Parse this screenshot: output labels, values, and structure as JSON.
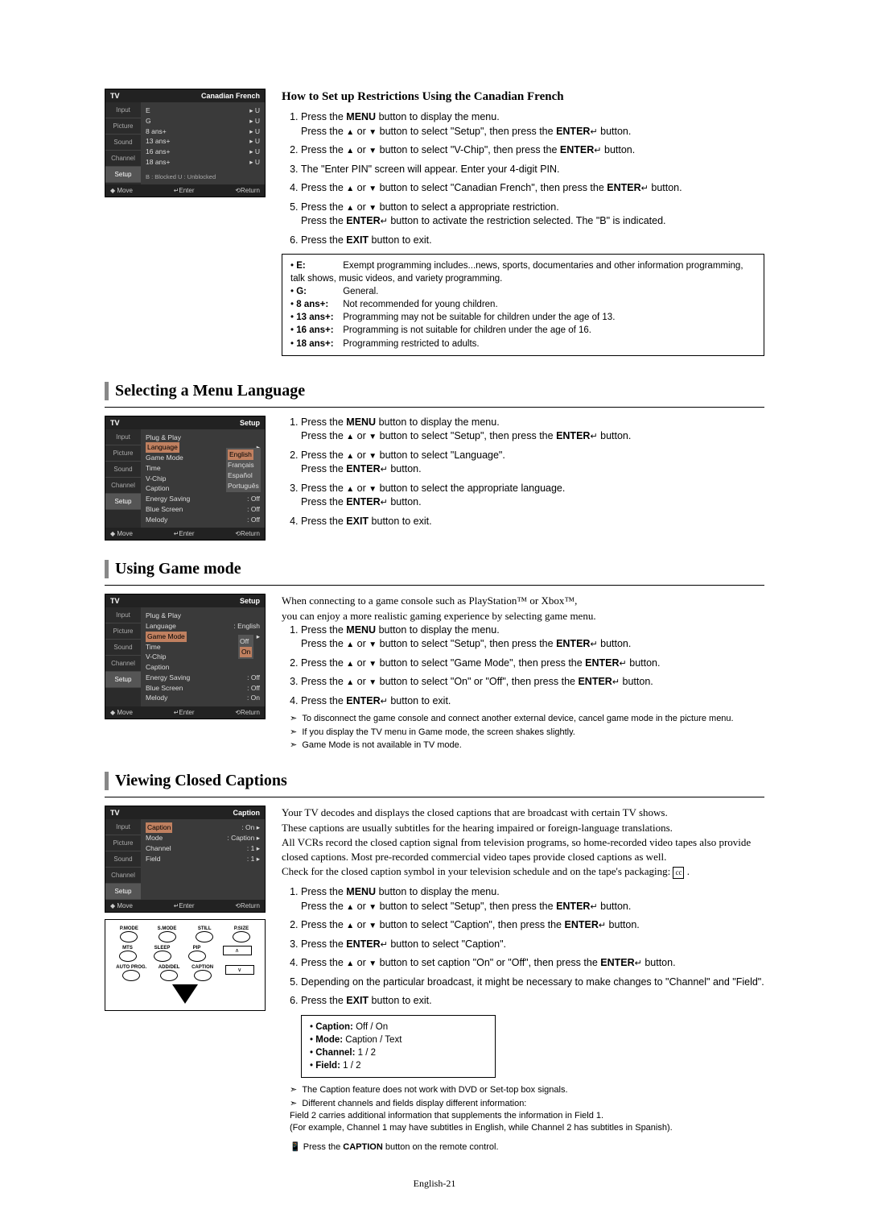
{
  "page_number": "English-21",
  "section1": {
    "subtitle": "How to Set up Restrictions Using the Canadian French",
    "steps": [
      "Press the <b>MENU</b> button to display the menu.<br>Press the <span class='caret'>▲</span> or <span class='caret'>▼</span> button to select \"Setup\", then press the <b>ENTER</b><span class='icon-enter'>↵</span> button.",
      "Press the <span class='caret'>▲</span> or <span class='caret'>▼</span> button to select \"V-Chip\", then press the <b>ENTER</b><span class='icon-enter'>↵</span> button.",
      "The \"Enter PIN\" screen will appear. Enter your 4-digit PIN.",
      "Press the <span class='caret'>▲</span> or <span class='caret'>▼</span> button to select \"Canadian French\", then press the <b>ENTER</b><span class='icon-enter'>↵</span> button.",
      "Press the <span class='caret'>▲</span> or <span class='caret'>▼</span> button to select a appropriate restriction.<br>Press the <b>ENTER</b><span class='icon-enter'>↵</span> button to activate the restriction selected. The \"B\" is indicated.",
      "Press the <b>EXIT</b> button to exit."
    ],
    "ratings": [
      {
        "k": "E:",
        "v": "Exempt programming includes...news, sports, documentaries and other information programming, talk shows, music videos, and variety programming."
      },
      {
        "k": "G:",
        "v": "General."
      },
      {
        "k": "8 ans+:",
        "v": "Not recommended for young children."
      },
      {
        "k": "13 ans+:",
        "v": "Programming may not be suitable for children under the age of 13."
      },
      {
        "k": "16 ans+:",
        "v": "Programming is not suitable for children under the age of 16."
      },
      {
        "k": "18 ans+:",
        "v": "Programming restricted to adults."
      }
    ],
    "menu": {
      "title": "TV",
      "sub": "Canadian French",
      "tabs": [
        "Input",
        "Picture",
        "Sound",
        "Channel",
        "Setup"
      ],
      "rows": [
        [
          "E",
          "▸ U"
        ],
        [
          "G",
          "▸ U"
        ],
        [
          "8 ans+",
          "▸ U"
        ],
        [
          "13 ans+",
          "▸ U"
        ],
        [
          "16 ans+",
          "▸ U"
        ],
        [
          "18 ans+",
          "▸ U"
        ]
      ],
      "legend": "B : Blocked        U : Unblocked",
      "footer": [
        "◆ Move",
        "↵Enter",
        "⟲Return"
      ]
    }
  },
  "section2": {
    "title": "Selecting a Menu Language",
    "steps": [
      "Press the <b>MENU</b> button to display the menu.<br>Press the <span class='caret'>▲</span> or <span class='caret'>▼</span> button to select \"Setup\", then press the <b>ENTER</b><span class='icon-enter'>↵</span> button.",
      "Press the <span class='caret'>▲</span> or <span class='caret'>▼</span> button to select \"Language\".<br>Press the <b>ENTER</b><span class='icon-enter'>↵</span> button.",
      "Press the <span class='caret'>▲</span> or <span class='caret'>▼</span> button to select the appropriate language.<br>Press the <b>ENTER</b><span class='icon-enter'>↵</span> button.",
      "Press the <b>EXIT</b> button to exit."
    ],
    "menu": {
      "title": "TV",
      "sub": "Setup",
      "tabs": [
        "Input",
        "Picture",
        "Sound",
        "Channel",
        "Setup"
      ],
      "items": [
        [
          "Plug & Play",
          ""
        ],
        [
          "Language",
          "▸"
        ],
        [
          "Game Mode",
          ""
        ],
        [
          "Time",
          ""
        ],
        [
          "V-Chip",
          ""
        ],
        [
          "Caption",
          ""
        ],
        [
          "Energy Saving",
          ": Off"
        ],
        [
          "Blue Screen",
          ": Off"
        ],
        [
          "Melody",
          ": Off"
        ]
      ],
      "langs": [
        "English",
        "Français",
        "Español",
        "Português"
      ],
      "footer": [
        "◆ Move",
        "↵Enter",
        "⟲Return"
      ]
    }
  },
  "section3": {
    "title": "Using Game mode",
    "intro": "When connecting to a game console such as PlayStation™ or Xbox™,<br>you can enjoy a more realistic gaming experience by selecting game menu.",
    "steps": [
      "Press the <b>MENU</b> button to display the menu.<br>Press the <span class='caret'>▲</span> or <span class='caret'>▼</span> button to select \"Setup\", then press the <b>ENTER</b><span class='icon-enter'>↵</span> button.",
      "Press the <span class='caret'>▲</span> or <span class='caret'>▼</span> button to select \"Game Mode\", then press the <b>ENTER</b><span class='icon-enter'>↵</span> button.",
      "Press the <span class='caret'>▲</span> or <span class='caret'>▼</span> button to select \"On\" or \"Off\", then press the <b>ENTER</b><span class='icon-enter'>↵</span> button.",
      "Press the <b>ENTER</b><span class='icon-enter'>↵</span> button to exit."
    ],
    "notes": [
      "To disconnect the game console and connect another external device, cancel game mode in the picture menu.",
      "If you display the TV menu in Game mode, the screen shakes slightly.",
      "Game Mode is not available in TV mode."
    ],
    "menu": {
      "title": "TV",
      "sub": "Setup",
      "tabs": [
        "Input",
        "Picture",
        "Sound",
        "Channel",
        "Setup"
      ],
      "items": [
        [
          "Plug & Play",
          ""
        ],
        [
          "Language",
          ": English"
        ],
        [
          "Game Mode",
          "▸"
        ],
        [
          "Time",
          ""
        ],
        [
          "V-Chip",
          ""
        ],
        [
          "Caption",
          ""
        ],
        [
          "Energy Saving",
          ": Off"
        ],
        [
          "Blue Screen",
          ": Off"
        ],
        [
          "Melody",
          ": On"
        ]
      ],
      "opts": [
        "Off",
        "On"
      ],
      "footer": [
        "◆ Move",
        "↵Enter",
        "⟲Return"
      ]
    }
  },
  "section4": {
    "title": "Viewing Closed Captions",
    "intro": "Your TV decodes and displays the closed captions that are broadcast with certain TV shows.<br>These captions are usually subtitles for the hearing impaired or foreign-language translations.<br>All VCRs record the closed caption signal from television programs, so home-recorded video tapes also provide closed captions. Most pre-recorded commercial video tapes provide closed captions as well.<br>Check for the closed caption symbol in your television schedule and on the tape's packaging: <span class='cc'>cc</span> .",
    "steps": [
      "Press the <b>MENU</b> button to display the menu.<br>Press the <span class='caret'>▲</span> or <span class='caret'>▼</span> button to select \"Setup\", then press the <b>ENTER</b><span class='icon-enter'>↵</span> button.",
      "Press the <span class='caret'>▲</span> or <span class='caret'>▼</span> button to select \"Caption\", then press the <b>ENTER</b><span class='icon-enter'>↵</span> button.",
      "Press the <b>ENTER</b><span class='icon-enter'>↵</span> button to select \"Caption\".",
      "Press the <span class='caret'>▲</span> or <span class='caret'>▼</span> button to set caption \"On\" or \"Off\", then press the <b>ENTER</b><span class='icon-enter'>↵</span> button.",
      "Depending on the particular broadcast, it might be necessary to make changes to \"Channel\" and \"Field\".",
      "Press the <b>EXIT</b> button to exit."
    ],
    "box": [
      "<b>Caption:</b> Off / On",
      "<b>Mode:</b> Caption / Text",
      "<b>Channel:</b> 1 / 2",
      "<b>Field:</b> 1 / 2"
    ],
    "notes": [
      "The Caption feature does not work with DVD or Set-top box signals.",
      "Different channels and fields display different information:<br>Field 2 carries additional information that supplements the information in Field 1.<br>(For example, Channel 1 may have subtitles in English, while Channel 2 has subtitles in Spanish)."
    ],
    "remote_note": "Press the <b>CAPTION</b> button on the remote control.",
    "menu": {
      "title": "TV",
      "sub": "Caption",
      "tabs": [
        "Input",
        "Picture",
        "Sound",
        "Channel",
        "Setup"
      ],
      "items": [
        [
          "Caption",
          ": On",
          "▸"
        ],
        [
          "Mode",
          ": Caption",
          "▸"
        ],
        [
          "Channel",
          ": 1",
          "▸"
        ],
        [
          "Field",
          ": 1",
          "▸"
        ]
      ],
      "footer": [
        "◆ Move",
        "↵Enter",
        "⟲Return"
      ]
    },
    "remote": {
      "r1": [
        "P.MODE",
        "S.MODE",
        "STILL",
        "P.SIZE"
      ],
      "r2": [
        "MTS",
        "SLEEP",
        "PIP",
        ""
      ],
      "r3": [
        "AUTO PROG.",
        "ADD/DEL",
        "CAPTION",
        ""
      ]
    }
  }
}
